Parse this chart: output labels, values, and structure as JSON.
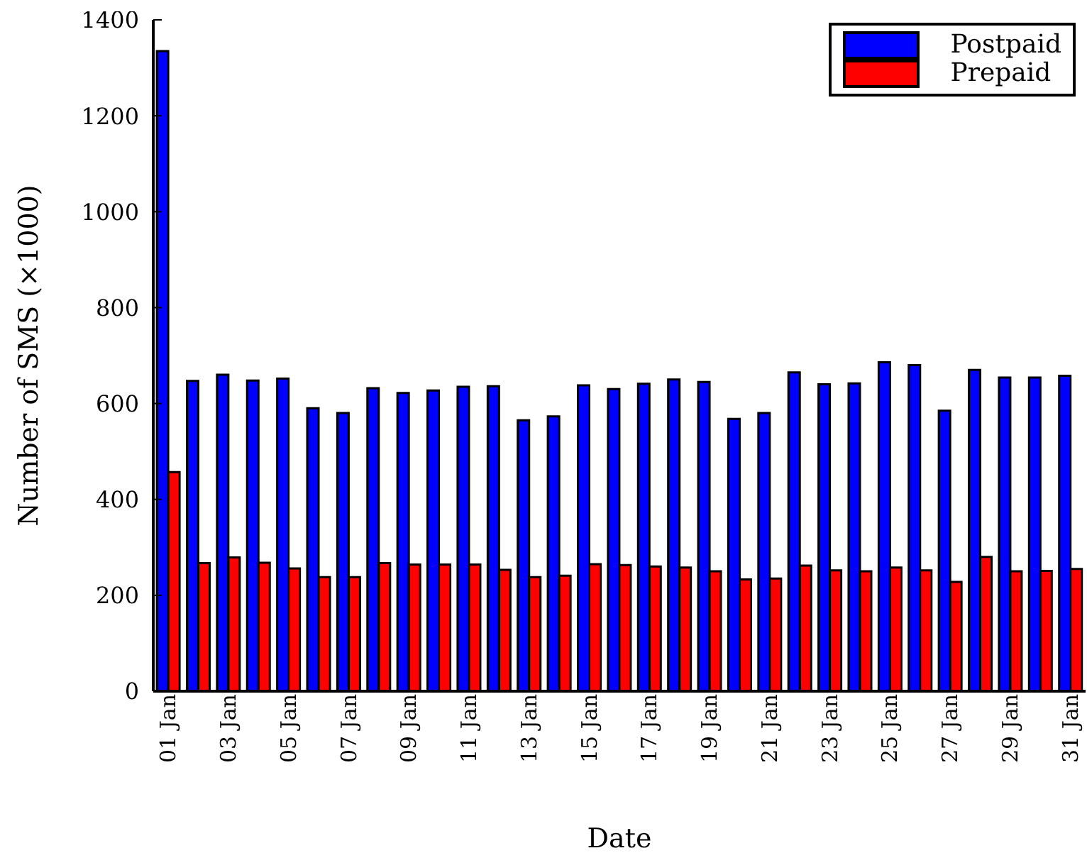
{
  "chart_data": {
    "type": "bar",
    "xlabel": "Date",
    "ylabel": "Number of SMS (×1000)",
    "categories": [
      "01 Jan",
      null,
      "03 Jan",
      null,
      "05 Jan",
      null,
      "07 Jan",
      null,
      "09 Jan",
      null,
      "11 Jan",
      null,
      "13 Jan",
      null,
      "15 Jan",
      null,
      "17 Jan",
      null,
      "19 Jan",
      null,
      "21 Jan",
      null,
      "23 Jan",
      null,
      "25 Jan",
      null,
      "27 Jan",
      null,
      "29 Jan",
      null,
      "31 Jan"
    ],
    "series": [
      {
        "name": "Postpaid",
        "color": "#0000ff",
        "values": [
          1335,
          647,
          660,
          648,
          652,
          590,
          580,
          632,
          622,
          627,
          635,
          636,
          565,
          573,
          638,
          630,
          641,
          650,
          645,
          568,
          580,
          665,
          640,
          642,
          686,
          680,
          585,
          670,
          654,
          654,
          658
        ]
      },
      {
        "name": "Prepaid",
        "color": "#ff0000",
        "values": [
          457,
          267,
          279,
          268,
          256,
          238,
          238,
          267,
          264,
          264,
          264,
          253,
          238,
          241,
          265,
          263,
          260,
          258,
          250,
          233,
          235,
          262,
          252,
          250,
          258,
          252,
          228,
          280,
          250,
          251,
          255
        ]
      }
    ],
    "ylim": [
      0,
      1400
    ],
    "yticks": [
      0,
      200,
      400,
      600,
      800,
      1000,
      1200,
      1400
    ],
    "grid": false,
    "legend": "top right"
  }
}
